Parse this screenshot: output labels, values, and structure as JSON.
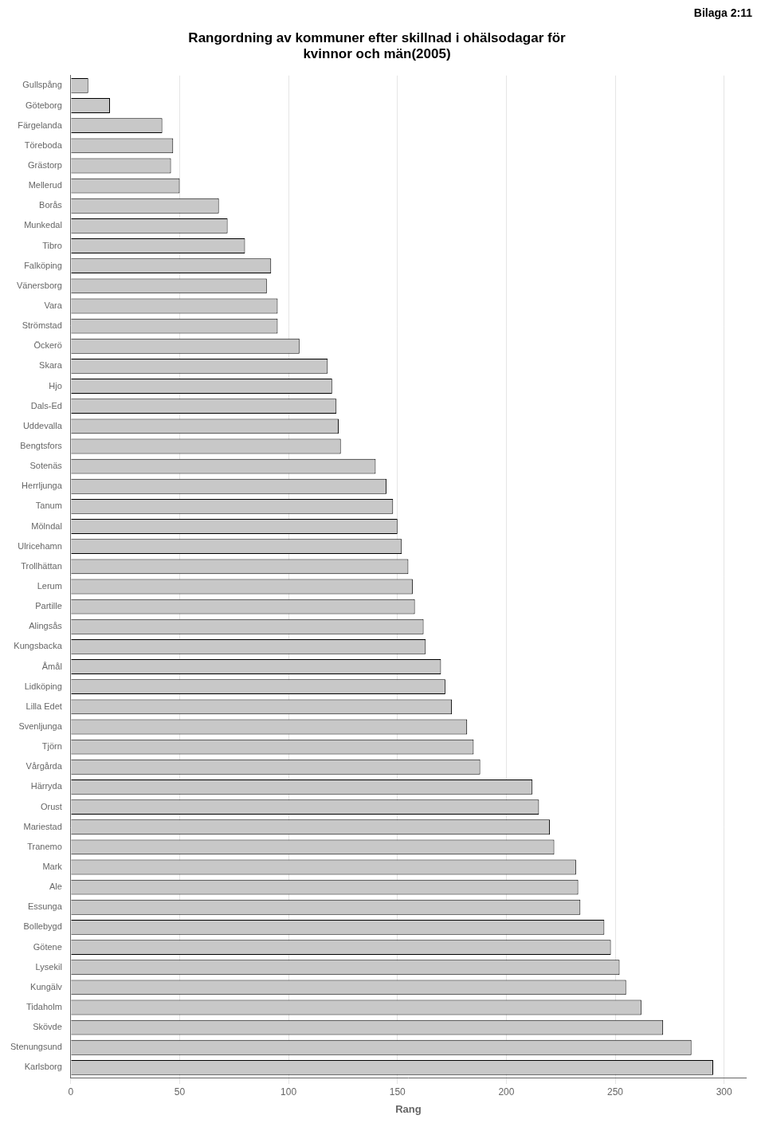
{
  "chart_data": {
    "type": "bar",
    "orientation": "horizontal",
    "title": [
      "Rangordning av kommuner efter skillnad i ohälsodagar för",
      "kvinnor och män(2005)"
    ],
    "annotation": "Bilaga 2:11",
    "x_label": "Rang",
    "categories": [
      "Gullspång",
      "Göteborg",
      "Färgelanda",
      "Töreboda",
      "Grästorp",
      "Mellerud",
      "Borås",
      "Munkedal",
      "Tibro",
      "Falköping",
      "Vänersborg",
      "Vara",
      "Strömstad",
      "Öckerö",
      "Skara",
      "Hjo",
      "Dals-Ed",
      "Uddevalla",
      "Bengtsfors",
      "Sotenäs",
      "Herrljunga",
      "Tanum",
      "Mölndal",
      "Ulricehamn",
      "Trollhättan",
      "Lerum",
      "Partille",
      "Alingsås",
      "Kungsbacka",
      "Åmål",
      "Lidköping",
      "Lilla Edet",
      "Svenljunga",
      "Tjörn",
      "Vårgårda",
      "Härryda",
      "Orust",
      "Mariestad",
      "Tranemo",
      "Mark",
      "Ale",
      "Essunga",
      "Bollebygd",
      "Götene",
      "Lysekil",
      "Kungälv",
      "Tidaholm",
      "Skövde",
      "Stenungsund",
      "Karlsborg"
    ],
    "values": [
      8,
      18,
      42,
      47,
      46,
      50,
      68,
      72,
      80,
      92,
      90,
      95,
      95,
      105,
      118,
      120,
      122,
      123,
      124,
      140,
      145,
      148,
      150,
      152,
      155,
      157,
      158,
      162,
      163,
      170,
      172,
      175,
      182,
      185,
      188,
      212,
      215,
      220,
      222,
      232,
      233,
      234,
      245,
      248,
      252,
      255,
      262,
      272,
      285,
      295
    ],
    "color": "#c8c8c8",
    "xlim": [
      0,
      310
    ],
    "xticks": [
      0,
      50,
      100,
      150,
      200,
      250,
      300
    ],
    "grid": true
  }
}
